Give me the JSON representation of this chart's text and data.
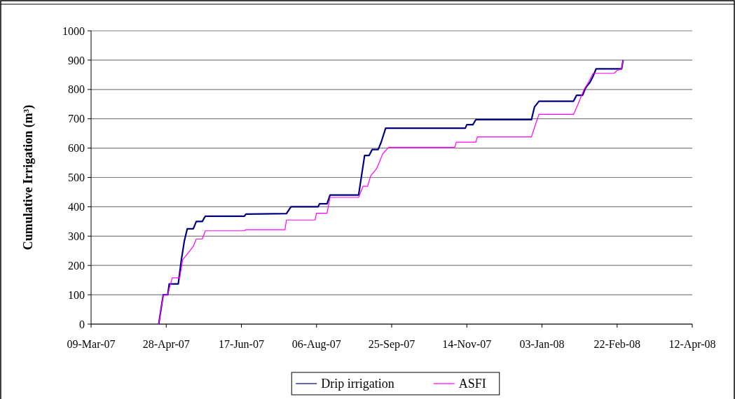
{
  "chart_data": {
    "type": "line",
    "ylabel": "Cumulative Irrigation (m³)",
    "ylim": [
      0,
      1000
    ],
    "yticks": [
      0,
      100,
      200,
      300,
      400,
      500,
      600,
      700,
      800,
      900,
      1000
    ],
    "xlim": [
      "2007-03-09",
      "2008-04-12"
    ],
    "xticks": [
      {
        "value": "2007-03-09",
        "label": "09-Mar-07"
      },
      {
        "value": "2007-04-28",
        "label": "28-Apr-07"
      },
      {
        "value": "2007-06-17",
        "label": "17-Jun-07"
      },
      {
        "value": "2007-08-06",
        "label": "06-Aug-07"
      },
      {
        "value": "2007-09-25",
        "label": "25-Sep-07"
      },
      {
        "value": "2007-11-14",
        "label": "14-Nov-07"
      },
      {
        "value": "2008-01-03",
        "label": "03-Jan-08"
      },
      {
        "value": "2008-02-22",
        "label": "22-Feb-08"
      },
      {
        "value": "2008-04-12",
        "label": "12-Apr-08"
      }
    ],
    "grid": "y",
    "legend": "bottom",
    "marker": "none",
    "line_style": "solid",
    "series": [
      {
        "name": "Drip irrigation",
        "color": "#000080",
        "x": [
          "2007-04-23",
          "2007-04-26",
          "2007-04-29",
          "2007-04-30",
          "2007-05-06",
          "2007-05-08",
          "2007-05-10",
          "2007-05-12",
          "2007-05-16",
          "2007-05-18",
          "2007-05-22",
          "2007-05-24",
          "2007-06-19",
          "2007-06-20",
          "2007-07-17",
          "2007-07-20",
          "2007-08-07",
          "2007-08-08",
          "2007-08-13",
          "2007-08-15",
          "2007-09-03",
          "2007-09-07",
          "2007-09-10",
          "2007-09-12",
          "2007-09-16",
          "2007-09-18",
          "2007-09-21",
          "2007-11-13",
          "2007-11-14",
          "2007-11-18",
          "2007-11-20",
          "2007-12-27",
          "2007-12-29",
          "2008-01-01",
          "2008-01-24",
          "2008-01-26",
          "2008-01-30",
          "2008-02-01",
          "2008-02-04",
          "2008-02-06",
          "2008-02-08",
          "2008-02-25",
          "2008-02-26"
        ],
        "values": [
          0,
          100,
          100,
          137,
          137,
          217,
          282,
          325,
          325,
          350,
          350,
          368,
          368,
          375,
          377,
          400,
          400,
          410,
          410,
          440,
          440,
          575,
          575,
          595,
          595,
          620,
          668,
          668,
          680,
          680,
          697,
          697,
          740,
          760,
          760,
          780,
          780,
          805,
          825,
          845,
          870,
          870,
          900
        ]
      },
      {
        "name": "ASFI",
        "color": "#ff00ff",
        "x": [
          "2007-04-23",
          "2007-04-26",
          "2007-04-29",
          "2007-04-30",
          "2007-05-02",
          "2007-05-07",
          "2007-05-09",
          "2007-05-13",
          "2007-05-16",
          "2007-05-18",
          "2007-05-22",
          "2007-05-24",
          "2007-06-19",
          "2007-06-20",
          "2007-07-16",
          "2007-07-17",
          "2007-08-05",
          "2007-08-06",
          "2007-08-13",
          "2007-08-15",
          "2007-09-03",
          "2007-09-06",
          "2007-09-09",
          "2007-09-11",
          "2007-09-15",
          "2007-09-19",
          "2007-09-23",
          "2007-11-06",
          "2007-11-07",
          "2007-11-20",
          "2007-11-21",
          "2007-12-27",
          "2007-12-29",
          "2008-01-01",
          "2008-01-24",
          "2008-01-27",
          "2008-01-31",
          "2008-02-03",
          "2008-02-06",
          "2008-02-20",
          "2008-02-22",
          "2008-02-25",
          "2008-02-26"
        ],
        "values": [
          0,
          100,
          100,
          120,
          158,
          158,
          220,
          245,
          265,
          290,
          290,
          318,
          318,
          322,
          322,
          355,
          355,
          378,
          378,
          432,
          432,
          470,
          470,
          505,
          530,
          580,
          603,
          603,
          620,
          620,
          638,
          638,
          670,
          715,
          715,
          750,
          800,
          825,
          855,
          855,
          865,
          870,
          900
        ]
      }
    ]
  }
}
